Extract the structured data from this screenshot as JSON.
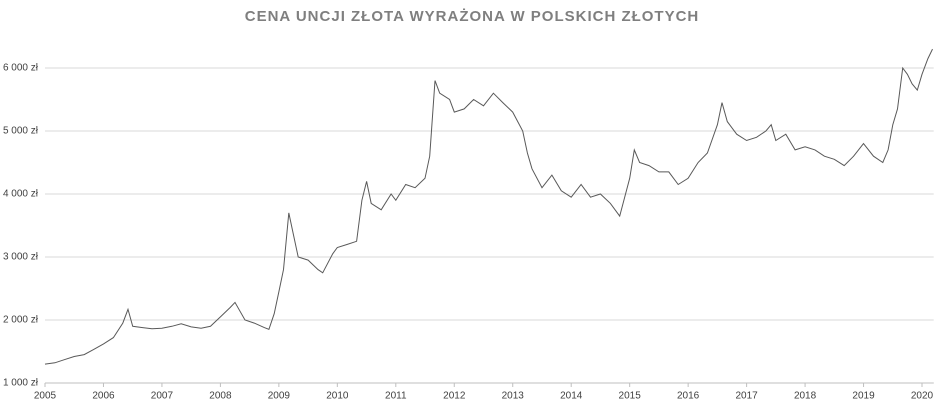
{
  "chart_data": {
    "type": "line",
    "title": "CENA UNCJI ZŁOTA WYRAŻONA W POLSKICH ZŁOTYCH",
    "x": [
      2005.0,
      2005.17,
      2005.33,
      2005.5,
      2005.67,
      2005.83,
      2006.0,
      2006.17,
      2006.33,
      2006.42,
      2006.5,
      2006.67,
      2006.83,
      2007.0,
      2007.17,
      2007.33,
      2007.5,
      2007.67,
      2007.83,
      2008.0,
      2008.17,
      2008.25,
      2008.42,
      2008.58,
      2008.75,
      2008.83,
      2008.92,
      2009.0,
      2009.08,
      2009.17,
      2009.25,
      2009.33,
      2009.5,
      2009.67,
      2009.75,
      2009.92,
      2010.0,
      2010.17,
      2010.33,
      2010.42,
      2010.5,
      2010.58,
      2010.75,
      2010.92,
      2011.0,
      2011.17,
      2011.33,
      2011.5,
      2011.58,
      2011.67,
      2011.75,
      2011.92,
      2012.0,
      2012.17,
      2012.33,
      2012.5,
      2012.67,
      2012.83,
      2013.0,
      2013.17,
      2013.25,
      2013.33,
      2013.5,
      2013.67,
      2013.83,
      2014.0,
      2014.17,
      2014.33,
      2014.5,
      2014.67,
      2014.83,
      2015.0,
      2015.08,
      2015.17,
      2015.33,
      2015.5,
      2015.67,
      2015.83,
      2016.0,
      2016.17,
      2016.33,
      2016.5,
      2016.58,
      2016.67,
      2016.83,
      2017.0,
      2017.17,
      2017.33,
      2017.42,
      2017.5,
      2017.67,
      2017.83,
      2018.0,
      2018.17,
      2018.33,
      2018.5,
      2018.67,
      2018.83,
      2019.0,
      2019.17,
      2019.33,
      2019.42,
      2019.5,
      2019.58,
      2019.67,
      2019.75,
      2019.83,
      2019.92,
      2020.0,
      2020.1,
      2020.18
    ],
    "series": [
      {
        "color": "#595959",
        "values": [
          1300,
          1320,
          1370,
          1420,
          1450,
          1530,
          1620,
          1720,
          1950,
          2170,
          1900,
          1880,
          1860,
          1870,
          1900,
          1940,
          1890,
          1870,
          1900,
          2050,
          2200,
          2280,
          2000,
          1950,
          1880,
          1850,
          2100,
          2450,
          2800,
          3700,
          3350,
          3000,
          2950,
          2800,
          2750,
          3050,
          3150,
          3200,
          3250,
          3900,
          4200,
          3850,
          3750,
          4000,
          3900,
          4150,
          4100,
          4250,
          4600,
          5800,
          5600,
          5500,
          5300,
          5350,
          5500,
          5400,
          5600,
          5450,
          5300,
          5000,
          4650,
          4400,
          4100,
          4300,
          4050,
          3950,
          4150,
          3950,
          4000,
          3850,
          3650,
          4250,
          4700,
          4500,
          4450,
          4350,
          4350,
          4150,
          4250,
          4500,
          4650,
          5100,
          5450,
          5150,
          4950,
          4850,
          4900,
          5000,
          5100,
          4850,
          4950,
          4700,
          4750,
          4700,
          4600,
          4550,
          4450,
          4600,
          4800,
          4600,
          4500,
          4700,
          5100,
          5350,
          6000,
          5900,
          5750,
          5650,
          5900,
          6150,
          6300
        ]
      }
    ],
    "xlim": [
      2005,
      2020.2
    ],
    "xticks": [
      2005,
      2006,
      2007,
      2008,
      2009,
      2010,
      2011,
      2012,
      2013,
      2014,
      2015,
      2016,
      2017,
      2018,
      2019,
      2020
    ],
    "ylim": [
      1000,
      6500
    ],
    "yticks": [
      {
        "value": 1000,
        "label": "1 000 zł"
      },
      {
        "value": 2000,
        "label": "2 000 zł"
      },
      {
        "value": 3000,
        "label": "3 000 zł"
      },
      {
        "value": 4000,
        "label": "4 000 zł"
      },
      {
        "value": 5000,
        "label": "5 000 zł"
      },
      {
        "value": 6000,
        "label": "6 000 zł"
      }
    ],
    "grid": true
  }
}
